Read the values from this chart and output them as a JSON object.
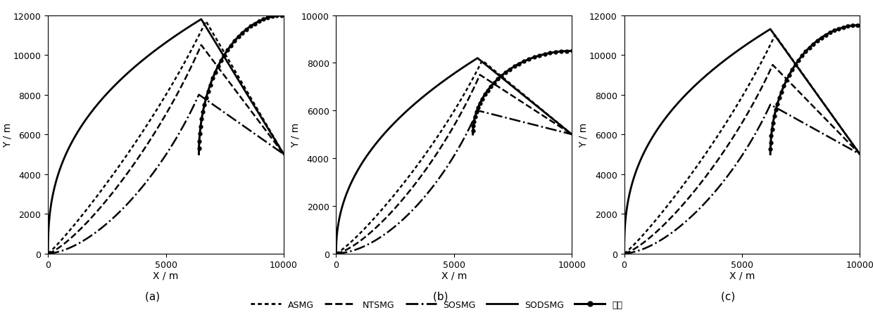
{
  "panels": [
    {
      "label": "(a)",
      "subtitle": "       ",
      "xlim": [
        0,
        10000
      ],
      "ylim": [
        0,
        12000
      ],
      "xticks": [
        0,
        5000,
        10000
      ],
      "yticks": [
        0,
        2000,
        4000,
        6000,
        8000,
        10000,
        12000
      ]
    },
    {
      "label": "(b)",
      "subtitle": "       ",
      "xlim": [
        0,
        10000
      ],
      "ylim": [
        0,
        10000
      ],
      "xticks": [
        0,
        5000,
        10000
      ],
      "yticks": [
        0,
        2000,
        4000,
        6000,
        8000,
        10000
      ]
    },
    {
      "label": "(c)",
      "subtitle": "       ",
      "xlim": [
        0,
        10000
      ],
      "ylim": [
        0,
        12000
      ],
      "xticks": [
        0,
        5000,
        10000
      ],
      "yticks": [
        0,
        2000,
        4000,
        6000,
        8000,
        10000,
        12000
      ]
    }
  ],
  "legend_entries": [
    "ASMG",
    "NTSMG",
    "SOSMG",
    "SODSMG",
    "目标"
  ],
  "xlabel": "X / m",
  "ylabel": "Y / m"
}
